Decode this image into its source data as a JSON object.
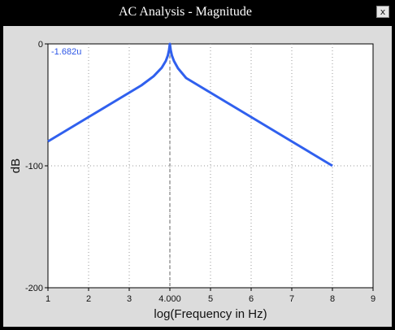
{
  "window": {
    "title": "AC Analysis - Magnitude",
    "close_glyph": "x"
  },
  "colors": {
    "trace": "#3060ee",
    "cursor_value": "#2b55e6",
    "plot_bg": "#ffffff",
    "panel_bg": "#dcdcdc"
  },
  "cursor": {
    "x": 4,
    "value_label": "-1.682u",
    "x_tick_label": "4.000"
  },
  "chart_data": {
    "type": "line",
    "xlabel": "log(Frequency in Hz)",
    "ylabel": "dB",
    "xlim": [
      1,
      9
    ],
    "ylim": [
      -200,
      0
    ],
    "x_ticks": [
      "1",
      "2",
      "3",
      "4.000",
      "5",
      "6",
      "7",
      "8",
      "9"
    ],
    "y_ticks": [
      "0",
      "-100",
      "-200"
    ],
    "grid": true,
    "series": [
      {
        "x": [
          1,
          1.5,
          2,
          2.5,
          3,
          3.3,
          3.6,
          3.8,
          3.9,
          3.95,
          3.98,
          4.0,
          4.02,
          4.05,
          4.1,
          4.2,
          4.4,
          4.7,
          5,
          5.5,
          6,
          6.5,
          7,
          7.5,
          8
        ],
        "y": [
          -80,
          -70,
          -60,
          -50,
          -40,
          -34,
          -26.5,
          -19.5,
          -14,
          -9.5,
          -5,
          0,
          -5,
          -9.5,
          -14,
          -20,
          -28,
          -34,
          -40,
          -50,
          -60,
          -70,
          -80,
          -90,
          -100
        ]
      }
    ]
  }
}
